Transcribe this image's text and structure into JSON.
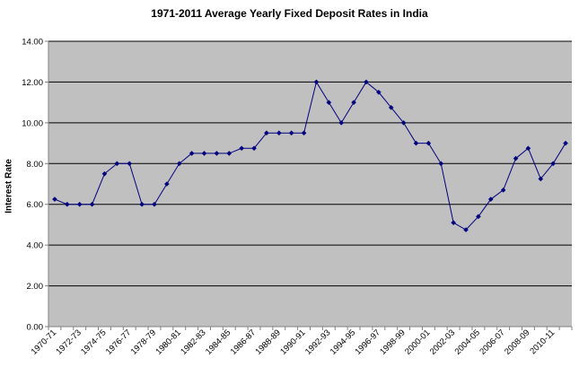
{
  "chart_data": {
    "type": "line",
    "title": "1971-2011 Average Yearly Fixed Deposit Rates in India",
    "xlabel": "",
    "ylabel": "Interest Rate",
    "ylim": [
      0,
      14
    ],
    "yticks": [
      "0.00",
      "2.00",
      "4.00",
      "6.00",
      "8.00",
      "10.00",
      "12.00",
      "14.00"
    ],
    "grid": true,
    "legend": "none",
    "colors": {
      "plot_bg": "#c0c0c0",
      "line": "#000080",
      "gridline": "#000000"
    },
    "categories": [
      "1970-71",
      "1971-72",
      "1972-73",
      "1973-74",
      "1974-75",
      "1975-76",
      "1976-77",
      "1977-78",
      "1978-79",
      "1979-80",
      "1980-81",
      "1981-82",
      "1982-83",
      "1983-84",
      "1984-85",
      "1985-86",
      "1986-87",
      "1987-88",
      "1988-89",
      "1989-90",
      "1990-91",
      "1991-92",
      "1992-93",
      "1993-94",
      "1994-95",
      "1995-96",
      "1996-97",
      "1997-98",
      "1998-99",
      "1999-00",
      "2000-01",
      "2001-02",
      "2002-03",
      "2003-04",
      "2004-05",
      "2005-06",
      "2006-07",
      "2007-08",
      "2008-09",
      "2009-10",
      "2010-11",
      "2011-12"
    ],
    "tick_labels_shown": [
      "1970-71",
      "1972-73",
      "1974-75",
      "1976-77",
      "1978-79",
      "1980-81",
      "1982-83",
      "1984-85",
      "1986-87",
      "1988-89",
      "1990-91",
      "1992-93",
      "1994-95",
      "1996-97",
      "1998-99",
      "2000-01",
      "2002-03",
      "2004-05",
      "2006-07",
      "2008-09",
      "2010-11"
    ],
    "series": [
      {
        "values": [
          6.25,
          6.0,
          6.0,
          6.0,
          7.5,
          8.0,
          8.0,
          6.0,
          6.0,
          7.0,
          8.0,
          8.5,
          8.5,
          8.5,
          8.5,
          8.75,
          8.75,
          9.5,
          9.5,
          9.5,
          9.5,
          12.0,
          11.0,
          10.0,
          11.0,
          12.0,
          11.5,
          10.75,
          10.0,
          9.0,
          9.0,
          8.0,
          5.1,
          4.75,
          5.4,
          6.25,
          6.7,
          8.25,
          8.75,
          7.25,
          8.0,
          9.0
        ]
      }
    ]
  }
}
